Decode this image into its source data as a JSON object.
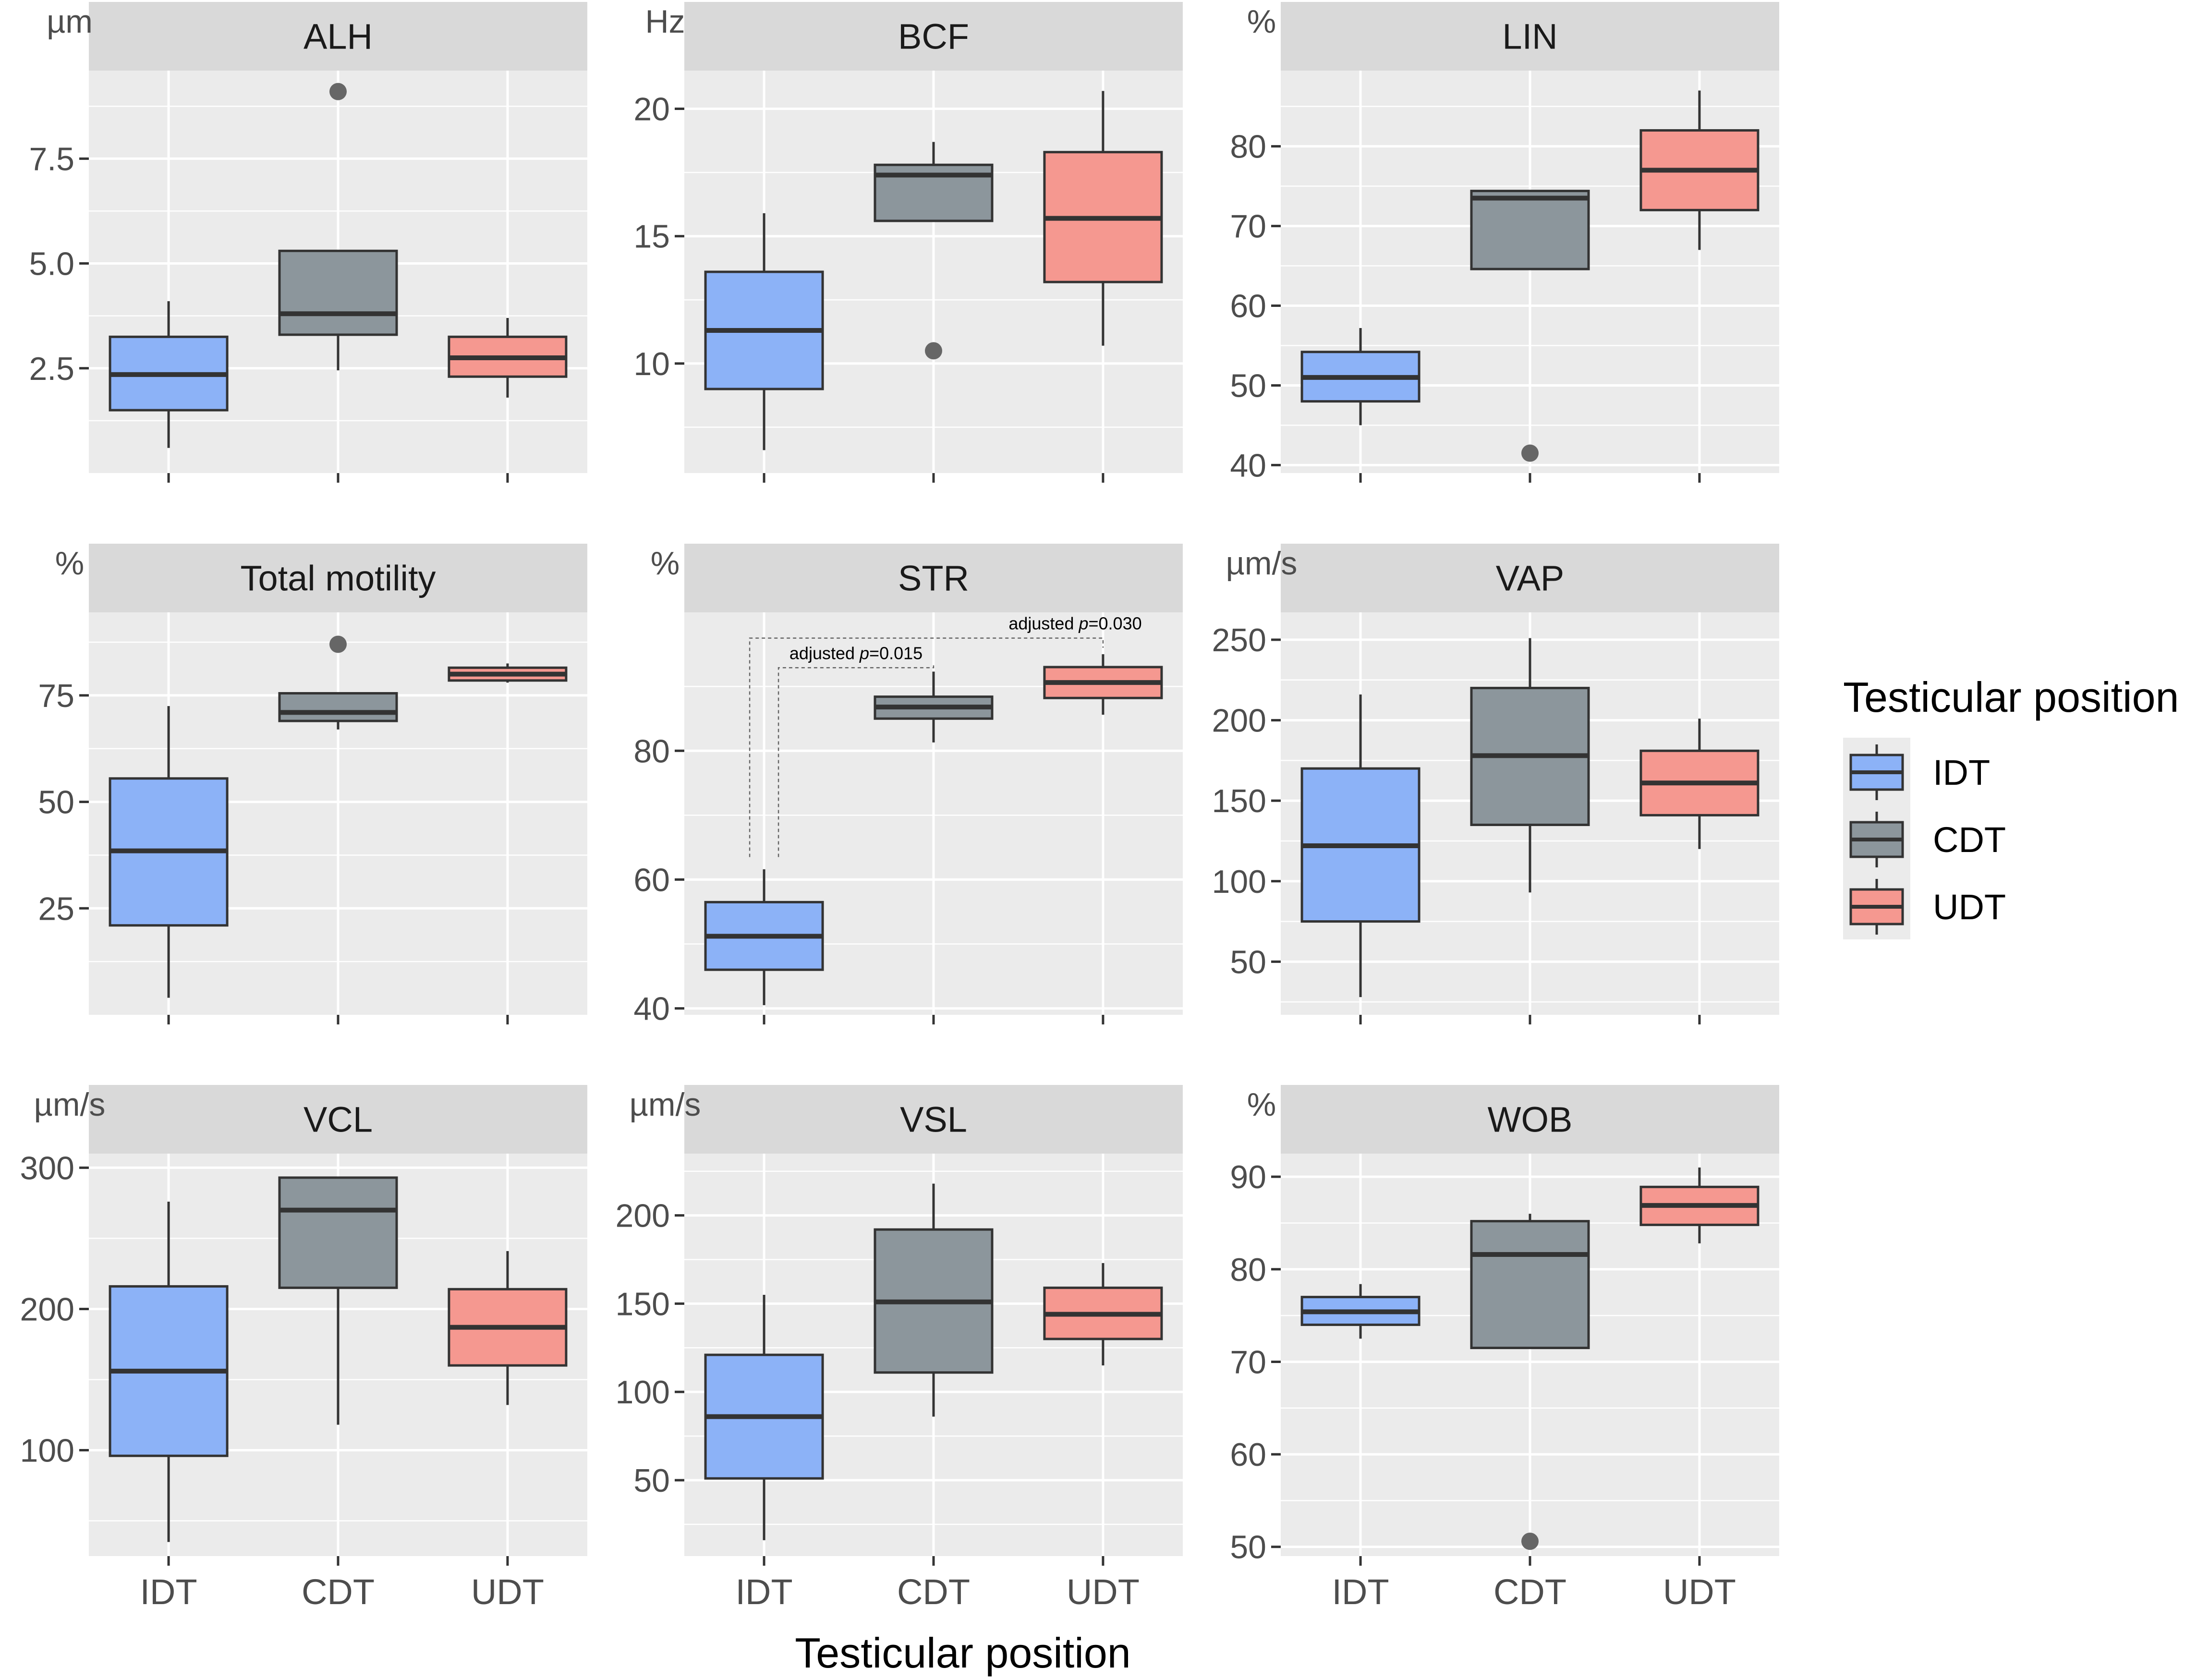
{
  "chart_data": {
    "type": "box",
    "x_title": "Testicular position",
    "categories": [
      "IDT",
      "CDT",
      "UDT"
    ],
    "colors": {
      "IDT": "#8cb2f7",
      "CDT": "#8c969c",
      "UDT": "#f59890"
    },
    "legend": {
      "title": "Testicular position",
      "placement": "right",
      "entries": [
        "IDT",
        "CDT",
        "UDT"
      ]
    },
    "panels": [
      {
        "title": "ALH",
        "unit": "µm",
        "ylim": [
          0.0,
          9.6
        ],
        "ticks": [
          2.5,
          5.0,
          7.5
        ],
        "tick_labels": [
          "2.5",
          "5.0",
          "7.5"
        ],
        "boxes": [
          {
            "category": "IDT",
            "min": 0.6,
            "q1": 1.5,
            "median": 2.35,
            "q3": 3.25,
            "max": 4.1,
            "outliers": []
          },
          {
            "category": "CDT",
            "min": 2.45,
            "q1": 3.3,
            "median": 3.8,
            "q3": 5.3,
            "max": 5.3,
            "outliers": [
              9.1
            ]
          },
          {
            "category": "UDT",
            "min": 1.8,
            "q1": 2.3,
            "median": 2.75,
            "q3": 3.25,
            "max": 3.7,
            "outliers": []
          }
        ]
      },
      {
        "title": "BCF",
        "unit": "Hz",
        "ylim": [
          5.7,
          21.5
        ],
        "ticks": [
          10,
          15,
          20
        ],
        "tick_labels": [
          "10",
          "15",
          "20"
        ],
        "boxes": [
          {
            "category": "IDT",
            "min": 6.6,
            "q1": 9.0,
            "median": 11.3,
            "q3": 13.6,
            "max": 15.9,
            "outliers": []
          },
          {
            "category": "CDT",
            "min": 15.6,
            "q1": 15.6,
            "median": 17.4,
            "q3": 17.8,
            "max": 18.7,
            "outliers": [
              10.5
            ]
          },
          {
            "category": "UDT",
            "min": 10.7,
            "q1": 13.2,
            "median": 15.7,
            "q3": 18.3,
            "max": 20.7,
            "outliers": []
          }
        ]
      },
      {
        "title": "LIN",
        "unit": "%",
        "ylim": [
          39.0,
          89.5
        ],
        "ticks": [
          40,
          50,
          60,
          70,
          80
        ],
        "tick_labels": [
          "40",
          "50",
          "60",
          "70",
          "80"
        ],
        "boxes": [
          {
            "category": "IDT",
            "min": 45.0,
            "q1": 48.0,
            "median": 51.0,
            "q3": 54.2,
            "max": 57.2,
            "outliers": []
          },
          {
            "category": "CDT",
            "min": 64.6,
            "q1": 64.6,
            "median": 73.5,
            "q3": 74.4,
            "max": 74.4,
            "outliers": [
              41.5
            ]
          },
          {
            "category": "UDT",
            "min": 67.0,
            "q1": 72.0,
            "median": 77.0,
            "q3": 82.0,
            "max": 87.0,
            "outliers": []
          }
        ]
      },
      {
        "title": "Total motility",
        "unit": "%",
        "ylim": [
          0.0,
          94.5
        ],
        "ticks": [
          25,
          50,
          75
        ],
        "tick_labels": [
          "25",
          "50",
          "75"
        ],
        "boxes": [
          {
            "category": "IDT",
            "min": 4.0,
            "q1": 21.0,
            "median": 38.5,
            "q3": 55.5,
            "max": 72.5,
            "outliers": []
          },
          {
            "category": "CDT",
            "min": 67.0,
            "q1": 69.0,
            "median": 71.0,
            "q3": 75.5,
            "max": 75.5,
            "outliers": [
              87.0
            ]
          },
          {
            "category": "UDT",
            "min": 78.0,
            "q1": 78.5,
            "median": 80.0,
            "q3": 81.5,
            "max": 82.5,
            "outliers": []
          }
        ]
      },
      {
        "title": "STR",
        "unit": "%",
        "ylim": [
          39.0,
          101.5
        ],
        "ticks": [
          40,
          60,
          80
        ],
        "tick_labels": [
          "40",
          "60",
          "80"
        ],
        "boxes": [
          {
            "category": "IDT",
            "min": 40.5,
            "q1": 46.0,
            "median": 51.2,
            "q3": 56.5,
            "max": 61.6,
            "outliers": []
          },
          {
            "category": "CDT",
            "min": 81.3,
            "q1": 85.0,
            "median": 86.8,
            "q3": 88.4,
            "max": 92.3,
            "outliers": []
          },
          {
            "category": "UDT",
            "min": 85.6,
            "q1": 88.2,
            "median": 90.6,
            "q3": 93.0,
            "max": 95.0,
            "outliers": []
          }
        ],
        "annotations": [
          {
            "from": "IDT",
            "to": "UDT",
            "label_prefix": "adjusted ",
            "label_p": "p",
            "label_suffix": "=0.030",
            "y_bracket": 97.5,
            "y_start": 63.5
          },
          {
            "from": "IDT",
            "to": "CDT",
            "label_prefix": "adjusted ",
            "label_p": "p",
            "label_suffix": "=0.015",
            "y_bracket": 92.9,
            "y_start": 63.5
          }
        ]
      },
      {
        "title": "VAP",
        "unit": "µm/s",
        "ylim": [
          17.0,
          267.0
        ],
        "ticks": [
          50,
          100,
          150,
          200,
          250
        ],
        "tick_labels": [
          "50",
          "100",
          "150",
          "200",
          "250"
        ],
        "boxes": [
          {
            "category": "IDT",
            "min": 28.0,
            "q1": 75.0,
            "median": 122.0,
            "q3": 170.0,
            "max": 216.0,
            "outliers": []
          },
          {
            "category": "CDT",
            "min": 93.0,
            "q1": 135.0,
            "median": 178.0,
            "q3": 220.0,
            "max": 251.0,
            "outliers": []
          },
          {
            "category": "UDT",
            "min": 120.0,
            "q1": 141.0,
            "median": 161.0,
            "q3": 181.0,
            "max": 201.0,
            "outliers": []
          }
        ]
      },
      {
        "title": "VCL",
        "unit": "µm/s",
        "ylim": [
          25.0,
          310.0
        ],
        "ticks": [
          100,
          200,
          300
        ],
        "tick_labels": [
          "100",
          "200",
          "300"
        ],
        "boxes": [
          {
            "category": "IDT",
            "min": 35.0,
            "q1": 96.0,
            "median": 156.0,
            "q3": 216.0,
            "max": 276.0,
            "outliers": []
          },
          {
            "category": "CDT",
            "min": 118.0,
            "q1": 215.0,
            "median": 270.0,
            "q3": 293.0,
            "max": 293.0,
            "outliers": []
          },
          {
            "category": "UDT",
            "min": 132.0,
            "q1": 160.0,
            "median": 187.0,
            "q3": 214.0,
            "max": 241.0,
            "outliers": []
          }
        ]
      },
      {
        "title": "VSL",
        "unit": "µm/s",
        "ylim": [
          7.0,
          235.0
        ],
        "ticks": [
          50,
          100,
          150,
          200
        ],
        "tick_labels": [
          "50",
          "100",
          "150",
          "200"
        ],
        "boxes": [
          {
            "category": "IDT",
            "min": 16.0,
            "q1": 51.0,
            "median": 86.0,
            "q3": 121.0,
            "max": 155.0,
            "outliers": []
          },
          {
            "category": "CDT",
            "min": 86.0,
            "q1": 111.0,
            "median": 151.0,
            "q3": 192.0,
            "max": 218.0,
            "outliers": []
          },
          {
            "category": "UDT",
            "min": 115.0,
            "q1": 130.0,
            "median": 144.0,
            "q3": 159.0,
            "max": 173.0,
            "outliers": []
          }
        ]
      },
      {
        "title": "WOB",
        "unit": "%",
        "ylim": [
          49.0,
          92.5
        ],
        "ticks": [
          50,
          60,
          70,
          80,
          90
        ],
        "tick_labels": [
          "50",
          "60",
          "70",
          "80",
          "90"
        ],
        "boxes": [
          {
            "category": "IDT",
            "min": 72.5,
            "q1": 74.0,
            "median": 75.4,
            "q3": 77.0,
            "max": 78.4,
            "outliers": []
          },
          {
            "category": "CDT",
            "min": 71.5,
            "q1": 71.5,
            "median": 81.6,
            "q3": 85.2,
            "max": 86.0,
            "outliers": [
              50.6
            ]
          },
          {
            "category": "UDT",
            "min": 82.8,
            "q1": 84.8,
            "median": 86.9,
            "q3": 88.9,
            "max": 91.0,
            "outliers": []
          }
        ]
      }
    ]
  }
}
